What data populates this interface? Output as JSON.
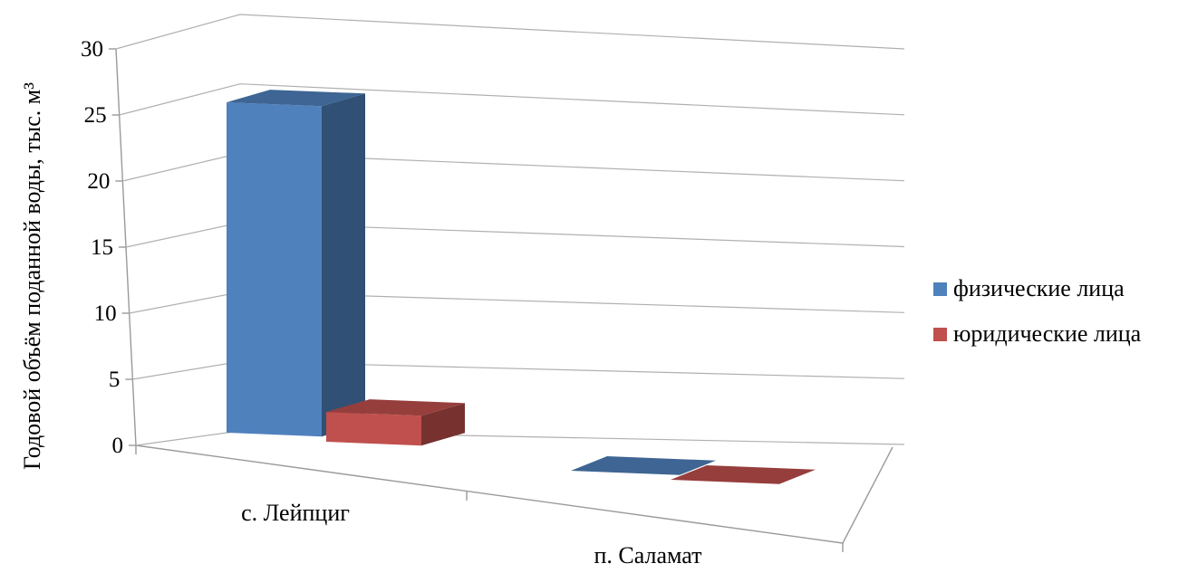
{
  "chart_data": {
    "type": "bar",
    "variant": "3d-clustered-column",
    "title": "",
    "xlabel": "",
    "ylabel": "Годовой объём поданной воды, тыс. м³",
    "ylim": [
      0,
      30
    ],
    "yticks": [
      "0",
      "5",
      "10",
      "15",
      "20",
      "25",
      "30"
    ],
    "grid": true,
    "legend_position": "right",
    "categories": [
      "с. Лейпциг",
      "п. Саламат"
    ],
    "series": [
      {
        "name": "физические лица",
        "values": [
          25.5,
          0
        ],
        "color": "#4F81BD"
      },
      {
        "name": "юридические лица",
        "values": [
          2.3,
          0
        ],
        "color": "#C0504D"
      }
    ]
  }
}
